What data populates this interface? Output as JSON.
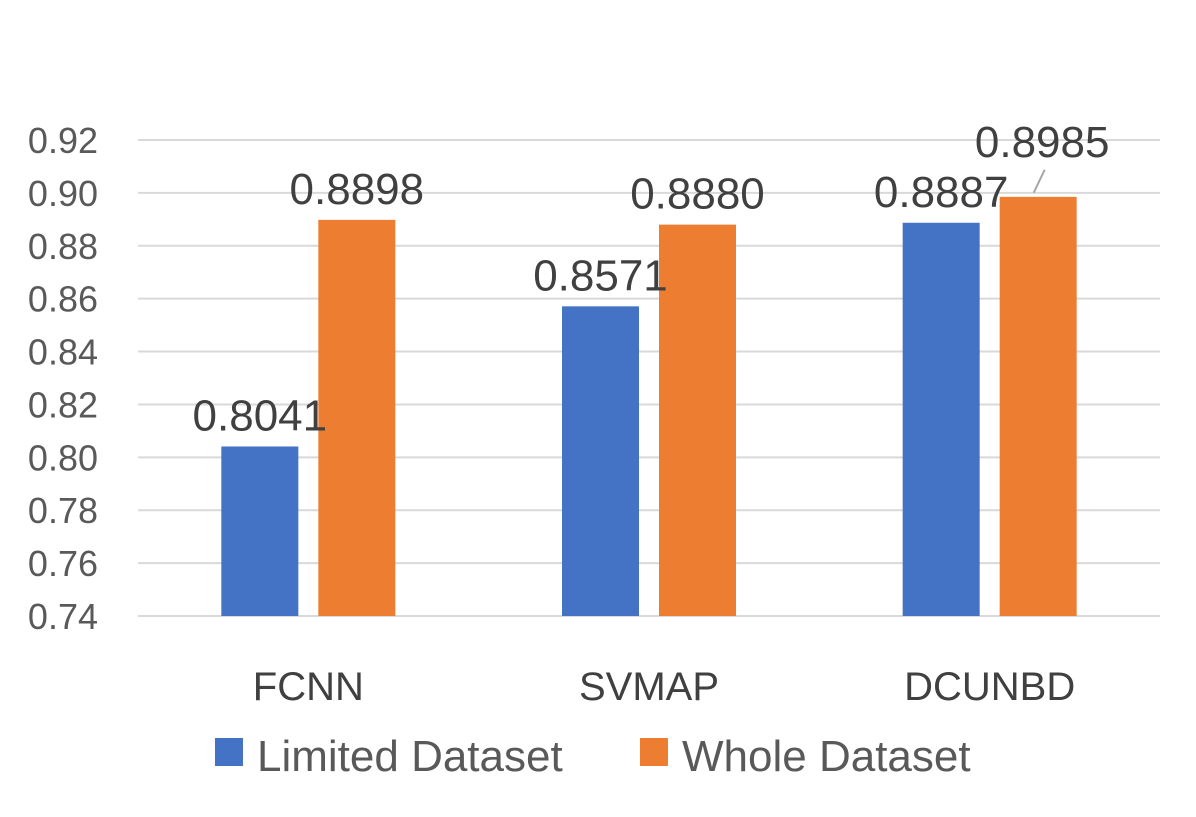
{
  "chart_data": {
    "type": "bar",
    "title": "",
    "xlabel": "",
    "ylabel": "",
    "categories": [
      "FCNN",
      "SVMAP",
      "DCUNBD"
    ],
    "series": [
      {
        "name": "Limited Dataset",
        "color": "#4472c4",
        "values": [
          0.8041,
          0.8571,
          0.8887
        ],
        "labels": [
          "0.8041",
          "0.8571",
          "0.8887"
        ]
      },
      {
        "name": "Whole Dataset",
        "color": "#ed7d31",
        "values": [
          0.8898,
          0.888,
          0.8985
        ],
        "labels": [
          "0.8898",
          "0.8880",
          "0.8985"
        ]
      }
    ],
    "ylim": [
      0.74,
      0.92
    ],
    "yticks": [
      0.74,
      0.76,
      0.78,
      0.8,
      0.82,
      0.84,
      0.86,
      0.88,
      0.9,
      0.92
    ],
    "ytick_labels": [
      "0.74",
      "0.76",
      "0.78",
      "0.80",
      "0.82",
      "0.84",
      "0.86",
      "0.88",
      "0.90",
      "0.92"
    ],
    "grid": true,
    "legend_position": "bottom"
  }
}
